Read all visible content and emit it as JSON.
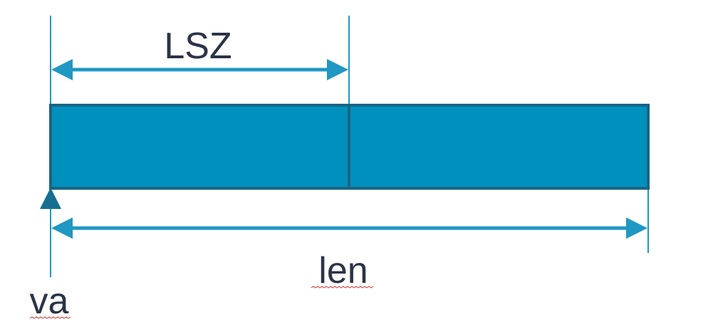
{
  "labels": {
    "segment_size": "LSZ",
    "length": "len",
    "start_address": "va"
  },
  "colors": {
    "bar_fill": "#0090bd",
    "bar_border": "#1b6383",
    "dimension_line": "#1f98c3",
    "start_arrow": "#166f91",
    "text": "#2b3447",
    "spellcheck_underline": "#d43333"
  }
}
